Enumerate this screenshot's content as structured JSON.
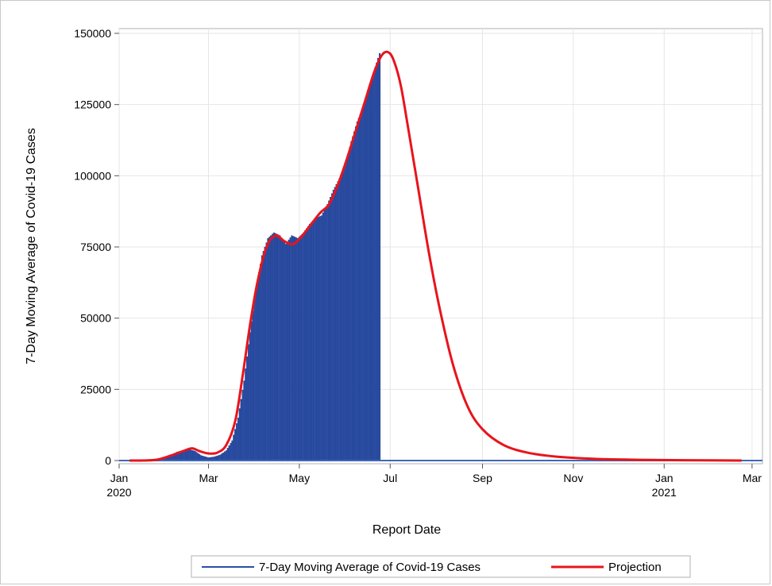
{
  "chart_data": {
    "type": "bar",
    "title": "",
    "xlabel": "Report Date",
    "ylabel": "7-Day Moving Average of Covid-19 Cases",
    "x_axis": {
      "type": "date",
      "range": [
        "2020-01-01",
        "2021-03-08"
      ],
      "ticks": [
        {
          "date": "2020-01-01",
          "label": "Jan",
          "sub": "2020"
        },
        {
          "date": "2020-03-01",
          "label": "Mar",
          "sub": ""
        },
        {
          "date": "2020-05-01",
          "label": "May",
          "sub": ""
        },
        {
          "date": "2020-07-01",
          "label": "Jul",
          "sub": ""
        },
        {
          "date": "2020-09-01",
          "label": "Sep",
          "sub": ""
        },
        {
          "date": "2020-11-01",
          "label": "Nov",
          "sub": ""
        },
        {
          "date": "2021-01-01",
          "label": "Jan",
          "sub": "2021"
        },
        {
          "date": "2021-03-01",
          "label": "Mar",
          "sub": ""
        }
      ]
    },
    "y_axis": {
      "range": [
        0,
        150000
      ],
      "ticks": [
        0,
        25000,
        50000,
        75000,
        100000,
        125000,
        150000
      ],
      "tick_labels": [
        "0",
        "25000",
        "50000",
        "75000",
        "100000",
        "125000",
        "150000"
      ]
    },
    "grid": true,
    "legend_placement": "bottom",
    "series": [
      {
        "name": "7-Day Moving Average of Covid-19 Cases",
        "kind": "bar",
        "color": "#2b4fa8",
        "points": [
          [
            "2020-01-22",
            0
          ],
          [
            "2020-01-28",
            300
          ],
          [
            "2020-02-01",
            1000
          ],
          [
            "2020-02-05",
            2000
          ],
          [
            "2020-02-09",
            3000
          ],
          [
            "2020-02-13",
            3600
          ],
          [
            "2020-02-17",
            3900
          ],
          [
            "2020-02-21",
            3300
          ],
          [
            "2020-02-25",
            1800
          ],
          [
            "2020-03-01",
            1000
          ],
          [
            "2020-03-05",
            1300
          ],
          [
            "2020-03-09",
            2000
          ],
          [
            "2020-03-13",
            3500
          ],
          [
            "2020-03-17",
            7000
          ],
          [
            "2020-03-21",
            15000
          ],
          [
            "2020-03-25",
            28000
          ],
          [
            "2020-03-29",
            45000
          ],
          [
            "2020-04-02",
            60000
          ],
          [
            "2020-04-06",
            72000
          ],
          [
            "2020-04-10",
            78000
          ],
          [
            "2020-04-14",
            80000
          ],
          [
            "2020-04-18",
            79000
          ],
          [
            "2020-04-22",
            76000
          ],
          [
            "2020-04-26",
            79000
          ],
          [
            "2020-04-30",
            78000
          ],
          [
            "2020-05-04",
            80000
          ],
          [
            "2020-05-08",
            83000
          ],
          [
            "2020-05-12",
            85000
          ],
          [
            "2020-05-16",
            86000
          ],
          [
            "2020-05-20",
            90000
          ],
          [
            "2020-05-24",
            95000
          ],
          [
            "2020-05-28",
            99000
          ],
          [
            "2020-06-01",
            104000
          ],
          [
            "2020-06-05",
            112000
          ],
          [
            "2020-06-09",
            119000
          ],
          [
            "2020-06-13",
            124000
          ],
          [
            "2020-06-17",
            131000
          ],
          [
            "2020-06-21",
            138000
          ],
          [
            "2020-06-24",
            143000
          ]
        ]
      },
      {
        "name": "Projection",
        "kind": "line",
        "color": "#e8141c",
        "points": [
          [
            "2020-01-08",
            0
          ],
          [
            "2020-01-25",
            200
          ],
          [
            "2020-02-05",
            1800
          ],
          [
            "2020-02-14",
            3500
          ],
          [
            "2020-02-19",
            4300
          ],
          [
            "2020-02-24",
            3300
          ],
          [
            "2020-03-01",
            2500
          ],
          [
            "2020-03-07",
            2800
          ],
          [
            "2020-03-13",
            5500
          ],
          [
            "2020-03-19",
            14000
          ],
          [
            "2020-03-24",
            30000
          ],
          [
            "2020-03-29",
            48000
          ],
          [
            "2020-04-03",
            63000
          ],
          [
            "2020-04-09",
            75000
          ],
          [
            "2020-04-15",
            79000
          ],
          [
            "2020-04-21",
            77000
          ],
          [
            "2020-04-27",
            76000
          ],
          [
            "2020-05-03",
            79000
          ],
          [
            "2020-05-09",
            83000
          ],
          [
            "2020-05-15",
            87000
          ],
          [
            "2020-05-21",
            90000
          ],
          [
            "2020-05-27",
            97000
          ],
          [
            "2020-06-02",
            106000
          ],
          [
            "2020-06-08",
            116000
          ],
          [
            "2020-06-14",
            126000
          ],
          [
            "2020-06-20",
            136000
          ],
          [
            "2020-06-25",
            142000
          ],
          [
            "2020-06-29",
            143500
          ],
          [
            "2020-07-03",
            141000
          ],
          [
            "2020-07-08",
            132000
          ],
          [
            "2020-07-13",
            117000
          ],
          [
            "2020-07-20",
            95000
          ],
          [
            "2020-07-27",
            73000
          ],
          [
            "2020-08-03",
            54000
          ],
          [
            "2020-08-12",
            34000
          ],
          [
            "2020-08-22",
            19000
          ],
          [
            "2020-09-01",
            11000
          ],
          [
            "2020-09-15",
            5500
          ],
          [
            "2020-10-01",
            2800
          ],
          [
            "2020-10-20",
            1400
          ],
          [
            "2020-11-15",
            600
          ],
          [
            "2020-12-15",
            250
          ],
          [
            "2021-01-15",
            100
          ],
          [
            "2021-02-22",
            0
          ]
        ]
      }
    ],
    "reference_line": {
      "y": 0,
      "color": "#4169b8"
    }
  },
  "legend": {
    "items": [
      {
        "label": "7-Day Moving Average of Covid-19 Cases",
        "color": "#2b4fa8"
      },
      {
        "label": "Projection",
        "color": "#e8141c"
      }
    ]
  }
}
